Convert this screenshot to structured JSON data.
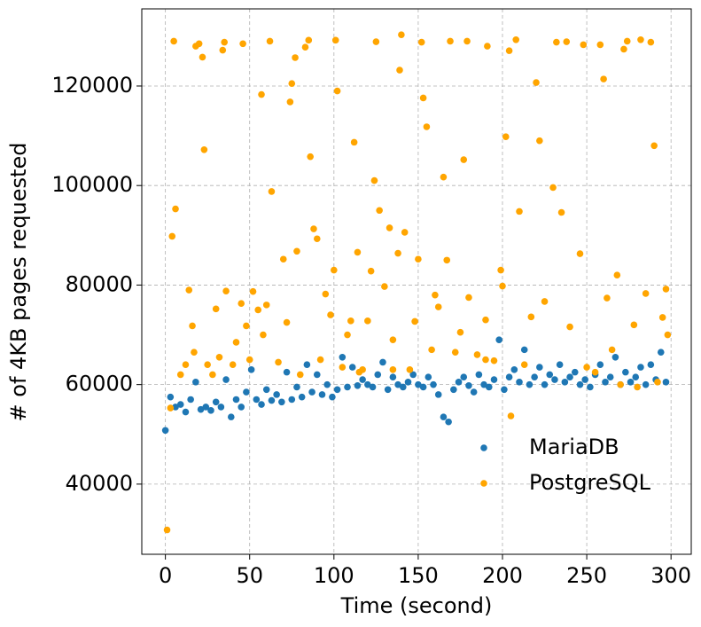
{
  "chart_data": {
    "type": "scatter",
    "xlabel": "Time (second)",
    "ylabel": "# of 4KB pages requested",
    "xlim": [
      -14,
      312
    ],
    "ylim": [
      25900,
      135500
    ],
    "xticks": [
      0,
      50,
      100,
      150,
      200,
      250,
      300
    ],
    "yticks": [
      40000,
      60000,
      80000,
      100000,
      120000
    ],
    "grid": true,
    "legend": "lower right",
    "series": [
      {
        "name": "MariaDB",
        "color": "#1f77b4",
        "x": [
          0,
          3,
          6,
          9,
          12,
          15,
          18,
          21,
          24,
          27,
          30,
          33,
          36,
          39,
          42,
          45,
          48,
          51,
          54,
          57,
          60,
          63,
          66,
          69,
          72,
          75,
          78,
          81,
          84,
          87,
          90,
          93,
          96,
          99,
          102,
          105,
          108,
          111,
          114,
          117,
          120,
          123,
          126,
          129,
          132,
          135,
          138,
          141,
          144,
          147,
          150,
          153,
          156,
          159,
          162,
          165,
          168,
          171,
          174,
          177,
          180,
          183,
          186,
          189,
          192,
          195,
          198,
          201,
          204,
          207,
          210,
          213,
          216,
          219,
          222,
          225,
          228,
          231,
          234,
          237,
          240,
          243,
          246,
          249,
          252,
          255,
          258,
          261,
          264,
          267,
          270,
          273,
          276,
          279,
          282,
          285,
          288,
          291,
          294,
          297
        ],
        "values": [
          50800,
          57500,
          55500,
          56000,
          54500,
          57000,
          60500,
          55000,
          55500,
          54800,
          56500,
          55500,
          61000,
          53500,
          57000,
          55500,
          58500,
          63000,
          57000,
          56000,
          59000,
          56800,
          58000,
          56500,
          62500,
          57000,
          59500,
          57500,
          64000,
          58500,
          62000,
          58000,
          60000,
          57500,
          59000,
          65500,
          59500,
          63500,
          59800,
          61000,
          60000,
          59500,
          62000,
          64500,
          59000,
          61500,
          60000,
          59500,
          60500,
          62000,
          60000,
          59500,
          61500,
          60000,
          58000,
          53500,
          52500,
          59000,
          60500,
          61500,
          59800,
          58500,
          62000,
          60000,
          59500,
          61000,
          69000,
          59000,
          61500,
          63000,
          60500,
          67000,
          60000,
          61500,
          63500,
          60000,
          62000,
          61000,
          64000,
          60500,
          61500,
          62500,
          60000,
          61000,
          59500,
          62000,
          64000,
          60500,
          61500,
          65500,
          60000,
          62500,
          60500,
          61500,
          63500,
          60000,
          64000,
          61000,
          66500,
          60500
        ]
      },
      {
        "name": "PostgreSQL",
        "color": "#ffa500",
        "x": [
          1,
          3,
          4,
          5,
          6,
          9,
          12,
          14,
          16,
          17,
          18,
          20,
          22,
          23,
          25,
          28,
          30,
          32,
          34,
          35,
          36,
          40,
          42,
          45,
          46,
          48,
          50,
          52,
          55,
          57,
          58,
          60,
          62,
          63,
          67,
          70,
          72,
          74,
          75,
          77,
          78,
          80,
          83,
          85,
          86,
          88,
          90,
          92,
          95,
          98,
          100,
          101,
          102,
          105,
          108,
          110,
          112,
          114,
          115,
          117,
          120,
          122,
          124,
          125,
          127,
          130,
          133,
          135,
          135,
          138,
          139,
          140,
          142,
          145,
          148,
          150,
          152,
          153,
          155,
          158,
          160,
          162,
          165,
          167,
          169,
          172,
          175,
          177,
          179,
          180,
          185,
          190,
          190,
          191,
          195,
          199,
          200,
          202,
          204,
          205,
          208,
          210,
          213,
          217,
          220,
          222,
          225,
          230,
          232,
          235,
          238,
          240,
          246,
          248,
          250,
          255,
          258,
          260,
          262,
          265,
          268,
          270,
          272,
          274,
          278,
          280,
          282,
          285,
          288,
          290,
          292,
          295,
          297,
          298
        ],
        "values": [
          30800,
          55300,
          89800,
          129000,
          95300,
          62000,
          64000,
          79000,
          71800,
          66500,
          128000,
          128500,
          125800,
          107200,
          64000,
          62000,
          75200,
          65500,
          127200,
          128800,
          78800,
          64000,
          68500,
          76300,
          128500,
          71800,
          65000,
          78700,
          75000,
          118300,
          70000,
          76000,
          129000,
          98800,
          64500,
          85200,
          72500,
          116800,
          120500,
          125700,
          86800,
          62000,
          127800,
          129200,
          105800,
          91300,
          89300,
          65000,
          78200,
          74000,
          83000,
          129200,
          119000,
          63500,
          70000,
          72800,
          108700,
          86600,
          62500,
          63000,
          72800,
          82800,
          101000,
          128900,
          95000,
          79700,
          91500,
          69000,
          63000,
          86400,
          123200,
          130300,
          90600,
          63000,
          72700,
          85200,
          128800,
          117600,
          111800,
          67000,
          78000,
          75600,
          101700,
          85000,
          129000,
          66500,
          70500,
          105200,
          129000,
          77500,
          66000,
          73000,
          65000,
          128000,
          64800,
          83000,
          79800,
          109800,
          127100,
          53700,
          129300,
          94800,
          64000,
          73600,
          120700,
          109000,
          76700,
          99600,
          128800,
          94600,
          128900,
          71600,
          86300,
          128300,
          63500,
          62500,
          128300,
          121400,
          77400,
          67000,
          82000,
          60000,
          127400,
          129000,
          72000,
          59500,
          129300,
          78300,
          128800,
          108000,
          60500,
          73500,
          79200,
          70000
        ]
      }
    ]
  }
}
